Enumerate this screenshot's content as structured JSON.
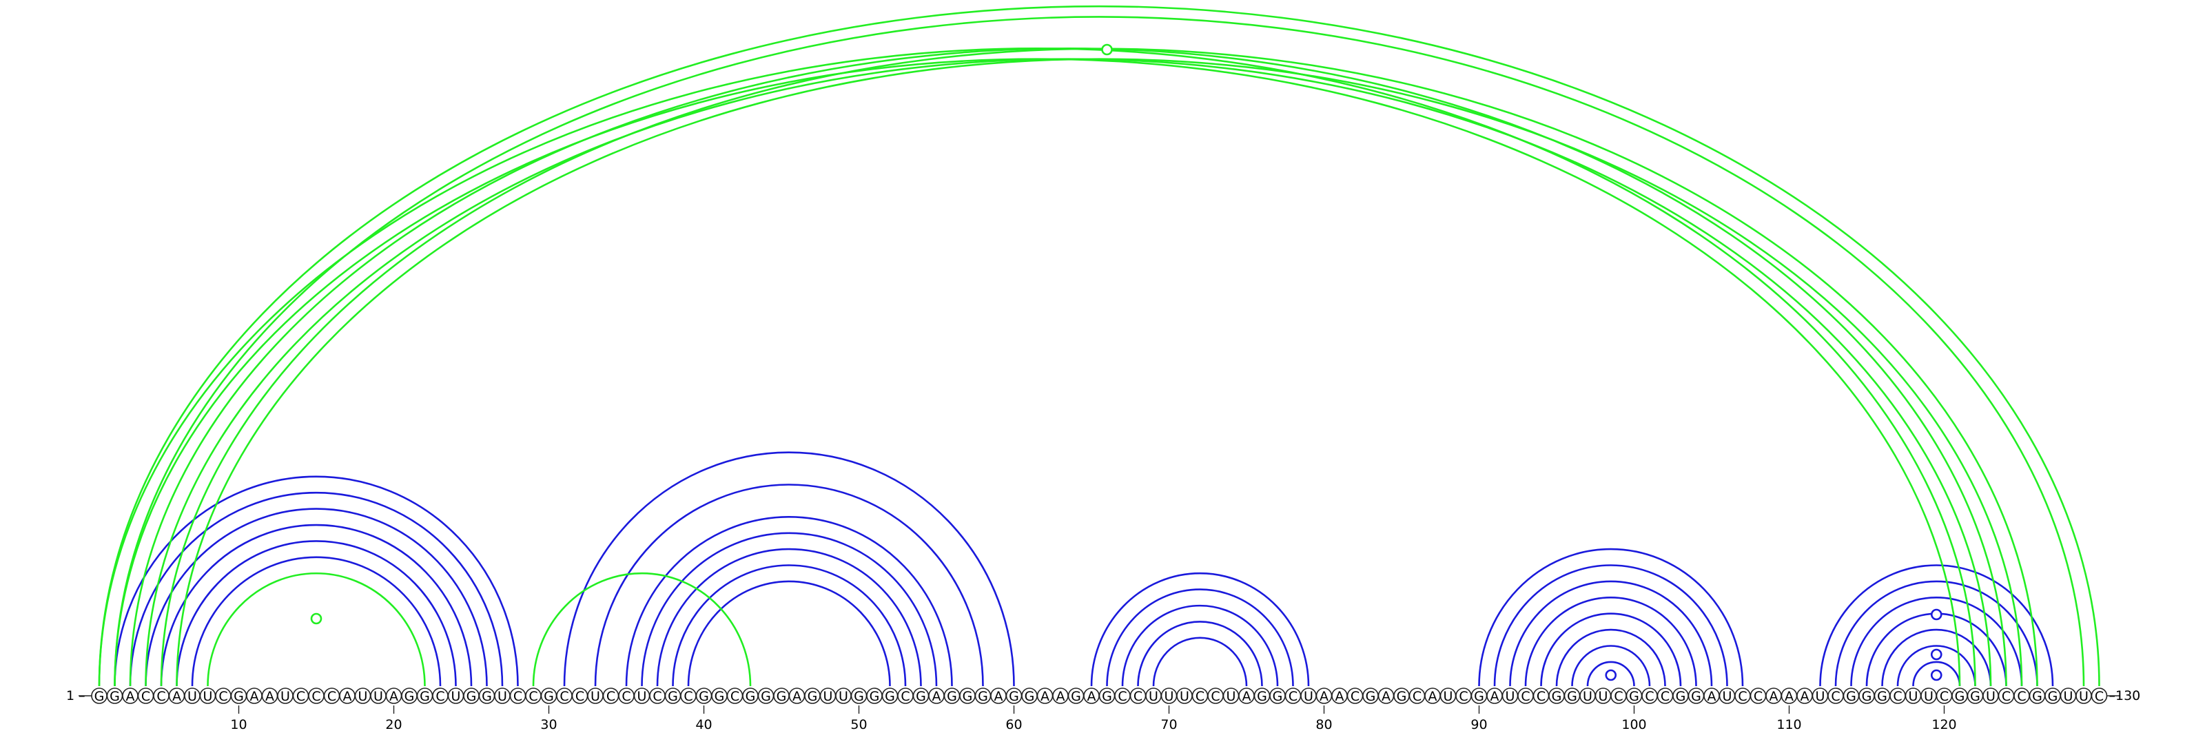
{
  "sequence": "GGACCAUUCGAAUCCCAUUAGGCUGGUCCGCCUCCUCGCGGCGGGAGUUGGGCGAGGGAGGAAGAGCCUUUCCUAGGCUAACGAGCAUCGAUCCGGUUCGCCGGAUCCAAAUCGGGCUUCGGUCCGGUUC",
  "start_label": "1",
  "end_label": "130",
  "ticks": [
    "10",
    "20",
    "30",
    "40",
    "50",
    "60",
    "70",
    "80",
    "90",
    "100",
    "110",
    "120"
  ],
  "colors": {
    "blue": "#1a1adc",
    "green": "#22ee22",
    "text": "#000000"
  },
  "pairs_blue": [
    [
      2,
      28
    ],
    [
      3,
      27
    ],
    [
      4,
      26
    ],
    [
      5,
      25
    ],
    [
      6,
      24
    ],
    [
      7,
      23
    ],
    [
      31,
      60
    ],
    [
      33,
      58
    ],
    [
      35,
      56
    ],
    [
      36,
      55
    ],
    [
      37,
      54
    ],
    [
      38,
      53
    ],
    [
      39,
      52
    ],
    [
      65,
      79
    ],
    [
      66,
      78
    ],
    [
      67,
      77
    ],
    [
      68,
      76
    ],
    [
      69,
      75
    ],
    [
      90,
      107
    ],
    [
      91,
      106
    ],
    [
      92,
      105
    ],
    [
      93,
      104
    ],
    [
      94,
      103
    ],
    [
      95,
      102
    ],
    [
      96,
      101
    ],
    [
      97,
      100
    ],
    [
      112,
      127
    ],
    [
      113,
      126
    ],
    [
      114,
      125
    ],
    [
      115,
      124
    ],
    [
      116,
      123
    ],
    [
      117,
      122
    ],
    [
      118,
      121
    ]
  ],
  "pairs_green": [
    [
      1,
      122
    ],
    [
      2,
      121
    ],
    [
      3,
      124
    ],
    [
      4,
      123
    ],
    [
      5,
      126
    ],
    [
      6,
      125
    ],
    [
      1,
      130
    ],
    [
      2,
      129
    ],
    [
      8,
      22
    ],
    [
      29,
      43
    ]
  ],
  "markers": [
    {
      "pos": 66,
      "level": "top",
      "color": "green"
    },
    {
      "pos": 15,
      "level": "arc",
      "color": "green"
    },
    {
      "pos": 98.5,
      "level": "small",
      "color": "blue"
    },
    {
      "pos": 119.5,
      "level": "b1",
      "color": "blue"
    },
    {
      "pos": 119.5,
      "level": "b2",
      "color": "blue"
    },
    {
      "pos": 119.5,
      "level": "b3",
      "color": "blue"
    }
  ]
}
